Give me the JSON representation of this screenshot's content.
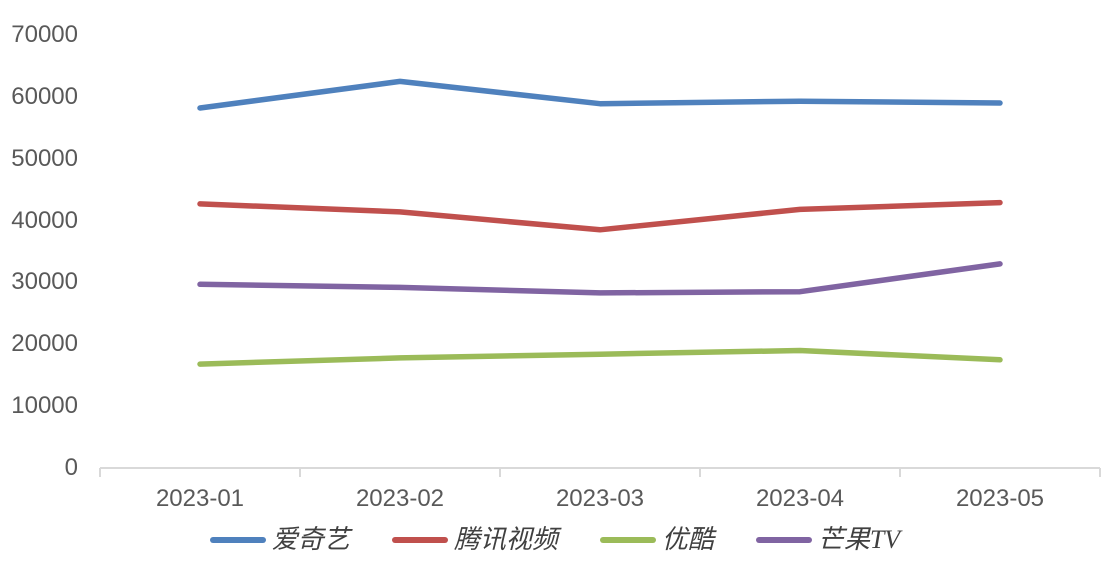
{
  "chart_data": {
    "type": "line",
    "title": "",
    "x_categories": [
      "2023-01",
      "2023-02",
      "2023-03",
      "2023-04",
      "2023-05"
    ],
    "series": [
      {
        "name": "爱奇艺",
        "slug": "iqiyi",
        "color": "#4F81BD",
        "values": [
          58200,
          62500,
          58900,
          59300,
          59000
        ]
      },
      {
        "name": "腾讯视频",
        "slug": "tencent-video",
        "color": "#C0504D",
        "values": [
          42700,
          41400,
          38500,
          41800,
          42900
        ]
      },
      {
        "name": "优酷",
        "slug": "youku",
        "color": "#9BBB59",
        "values": [
          16800,
          17800,
          18400,
          19000,
          17500
        ]
      },
      {
        "name": "芒果TV",
        "slug": "mango-tv",
        "color": "#8064A2",
        "values": [
          29700,
          29200,
          28300,
          28500,
          33000
        ]
      }
    ],
    "y_axis": {
      "min": 0,
      "max": 70000,
      "step": 10000,
      "tick_labels": [
        "0",
        "10000",
        "20000",
        "30000",
        "40000",
        "50000",
        "60000",
        "70000"
      ]
    },
    "x_axis": {
      "tick_marks": "between-categories"
    },
    "legend_position": "bottom",
    "grid": false,
    "line_width": 5.5
  },
  "styles": {
    "background": "#ffffff",
    "axis_text_color": "#595959",
    "legend_text_color": "#404040",
    "axis_line_color": "#d9d9d9"
  }
}
